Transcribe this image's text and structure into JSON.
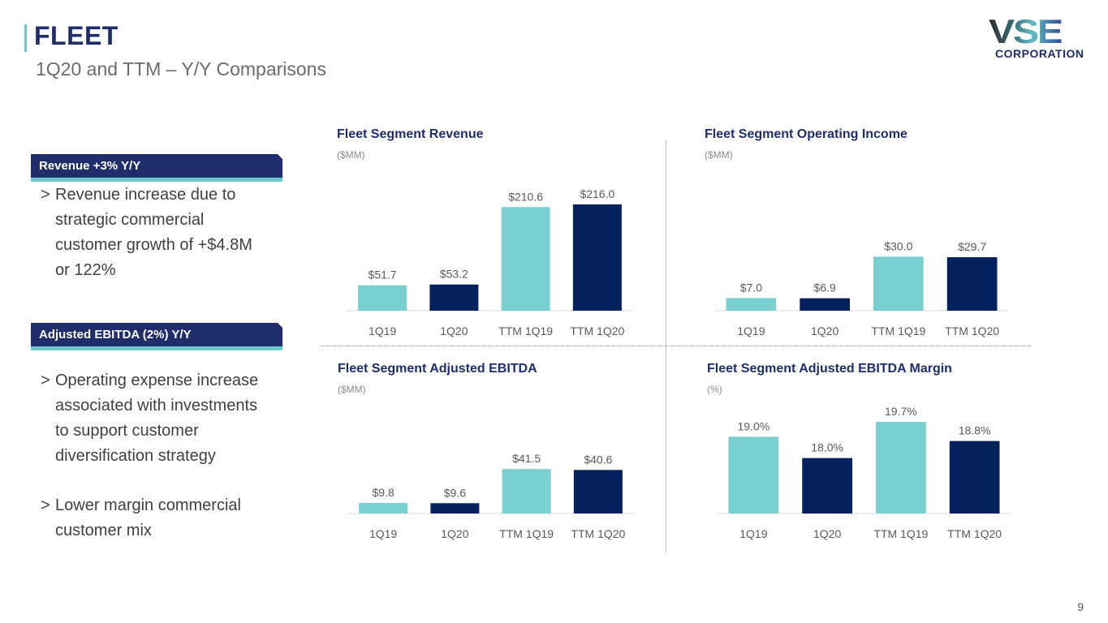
{
  "header": {
    "title": "FLEET",
    "subtitle": "1Q20 and TTM – Y/Y Comparisons"
  },
  "logo": {
    "main": "VSE",
    "sub": "CORPORATION"
  },
  "sections": [
    {
      "badge": "Revenue +3% Y/Y",
      "bullets": [
        {
          "marker": ">",
          "lines": [
            "Revenue increase due to",
            "strategic commercial",
            "customer growth of +$4.8M",
            "or 122%"
          ]
        }
      ]
    },
    {
      "badge": "Adjusted EBITDA (2%) Y/Y",
      "bullets": [
        {
          "marker": ">",
          "lines": [
            "Operating expense increase",
            "associated with investments",
            "to support customer",
            "diversification strategy"
          ]
        },
        {
          "marker": ">",
          "lines": [
            "Lower margin commercial",
            "customer mix"
          ]
        }
      ]
    }
  ],
  "colors": {
    "light_bar": "#7acfd1",
    "dark_bar": "#03215c",
    "title": "#1f2d6b",
    "accent": "#6fc8cc"
  },
  "chart_data": [
    {
      "type": "bar",
      "title": "Fleet Segment Revenue",
      "unit": "($MM)",
      "categories": [
        "1Q19",
        "1Q20",
        "TTM 1Q19",
        "TTM 1Q20"
      ],
      "values": [
        51.7,
        53.2,
        210.6,
        216.0
      ],
      "labels": [
        "$51.7",
        "$53.2",
        "$210.6",
        "$216.0"
      ],
      "bar_colors": [
        "light",
        "dark",
        "light",
        "dark"
      ],
      "ylim": [
        0,
        216.0
      ],
      "grid": false
    },
    {
      "type": "bar",
      "title": "Fleet Segment Operating Income",
      "unit": "($MM)",
      "categories": [
        "1Q19",
        "1Q20",
        "TTM 1Q19",
        "TTM 1Q20"
      ],
      "values": [
        7.0,
        6.9,
        30.0,
        29.7
      ],
      "labels": [
        "$7.0",
        "$6.9",
        "$30.0",
        "$29.7"
      ],
      "bar_colors": [
        "light",
        "dark",
        "light",
        "dark"
      ],
      "ylim": [
        0,
        59
      ],
      "grid": false
    },
    {
      "type": "bar",
      "title": "Fleet Segment Adjusted EBITDA",
      "unit": "($MM)",
      "categories": [
        "1Q19",
        "1Q20",
        "TTM 1Q19",
        "TTM 1Q20"
      ],
      "values": [
        9.8,
        9.6,
        41.5,
        40.6
      ],
      "labels": [
        "$9.8",
        "$9.6",
        "$41.5",
        "$40.6"
      ],
      "bar_colors": [
        "light",
        "dark",
        "light",
        "dark"
      ],
      "ylim": [
        0,
        56
      ],
      "grid": false
    },
    {
      "type": "bar",
      "title": "Fleet Segment Adjusted EBITDA Margin",
      "unit": "(%)",
      "categories": [
        "1Q19",
        "1Q20",
        "TTM 1Q19",
        "TTM 1Q20"
      ],
      "values": [
        19.0,
        18.0,
        19.7,
        18.8
      ],
      "labels": [
        "19.0%",
        "18.0%",
        "19.7%",
        "18.8%"
      ],
      "bar_colors": [
        "light",
        "dark",
        "light",
        "dark"
      ],
      "ylim": [
        15.4,
        19.7
      ],
      "grid": false
    }
  ],
  "footer": {
    "page_number": "9"
  }
}
